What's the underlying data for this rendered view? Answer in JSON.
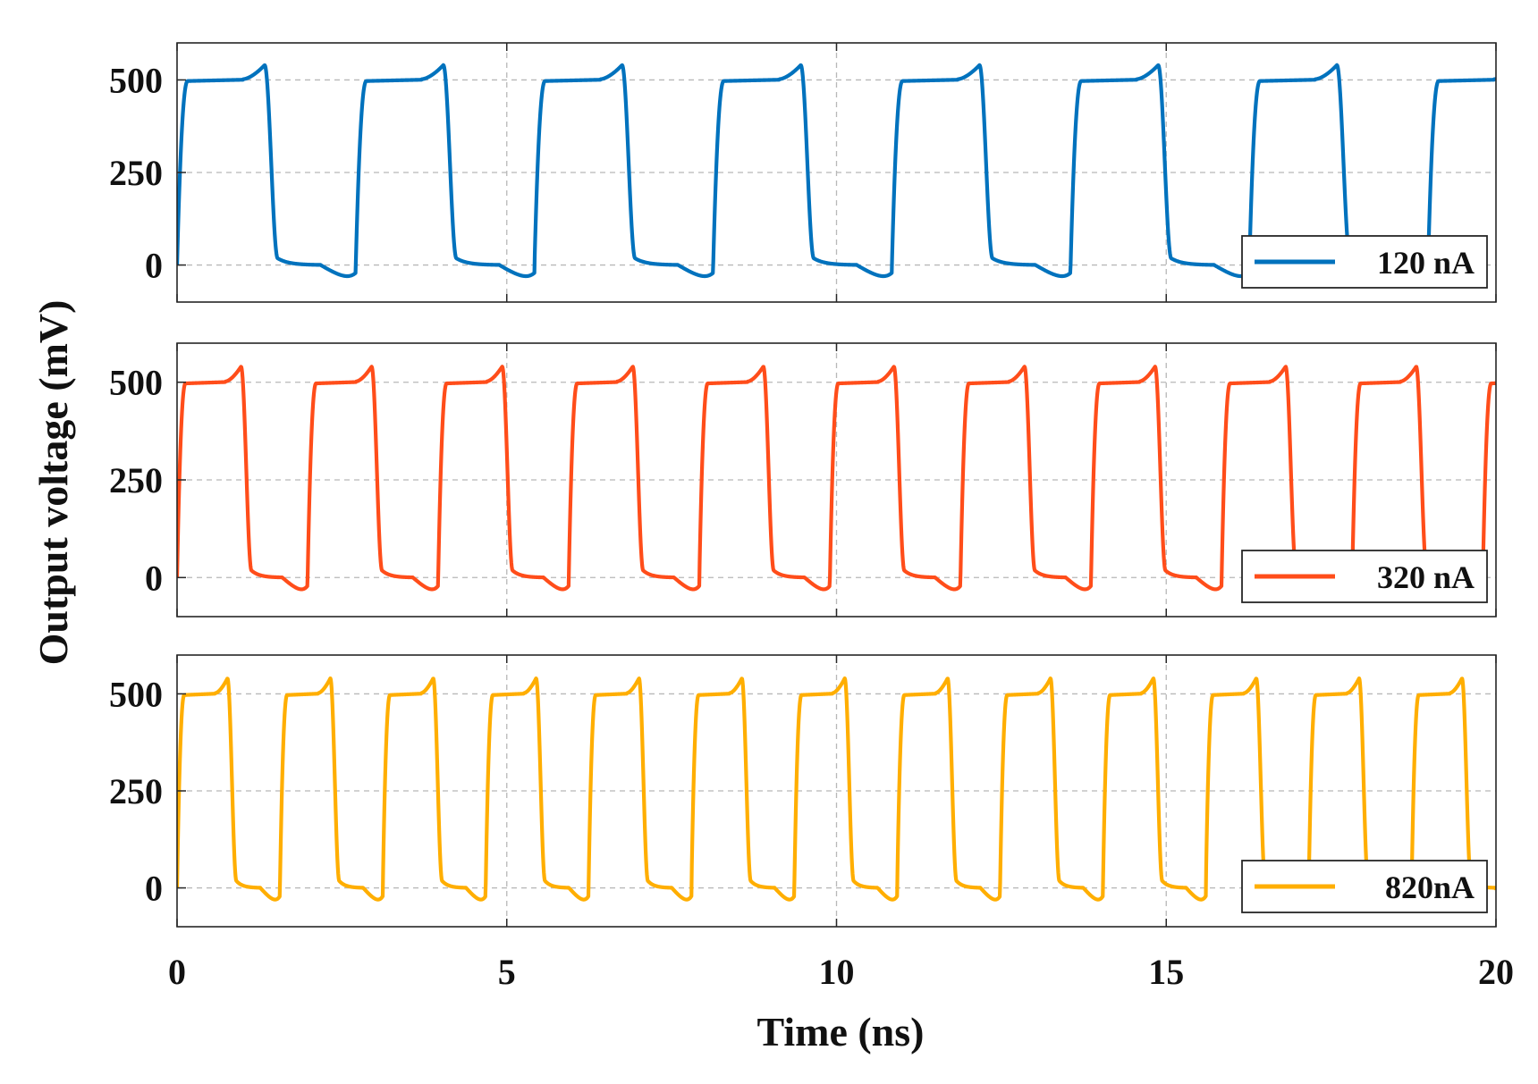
{
  "chart_data": {
    "type": "line",
    "xlabel": "Time (ns)",
    "ylabel": "Output voltage (mV)",
    "xlim": [
      0,
      20
    ],
    "ylim": [
      -100,
      600
    ],
    "xticks": [
      "0",
      "5",
      "10",
      "15",
      "20"
    ],
    "yticks": [
      "500",
      "250",
      "0"
    ],
    "grid": true,
    "legend_position": "bottom-right",
    "waveform": {
      "high_mV": 497,
      "low_mV": 0,
      "overshoot_mV": 540,
      "undershoot_mV": -35
    },
    "series": [
      {
        "name": "120 nA",
        "color": "#0072BD",
        "period_ns": 2.71,
        "rise_start_ns": 0.0
      },
      {
        "name": "320 nA",
        "color": "#FF4D1A",
        "period_ns": 1.98,
        "rise_start_ns": 0.0
      },
      {
        "name": "820nA",
        "color": "#FFAE00",
        "period_ns": 1.56,
        "rise_start_ns": 0.0
      }
    ]
  }
}
